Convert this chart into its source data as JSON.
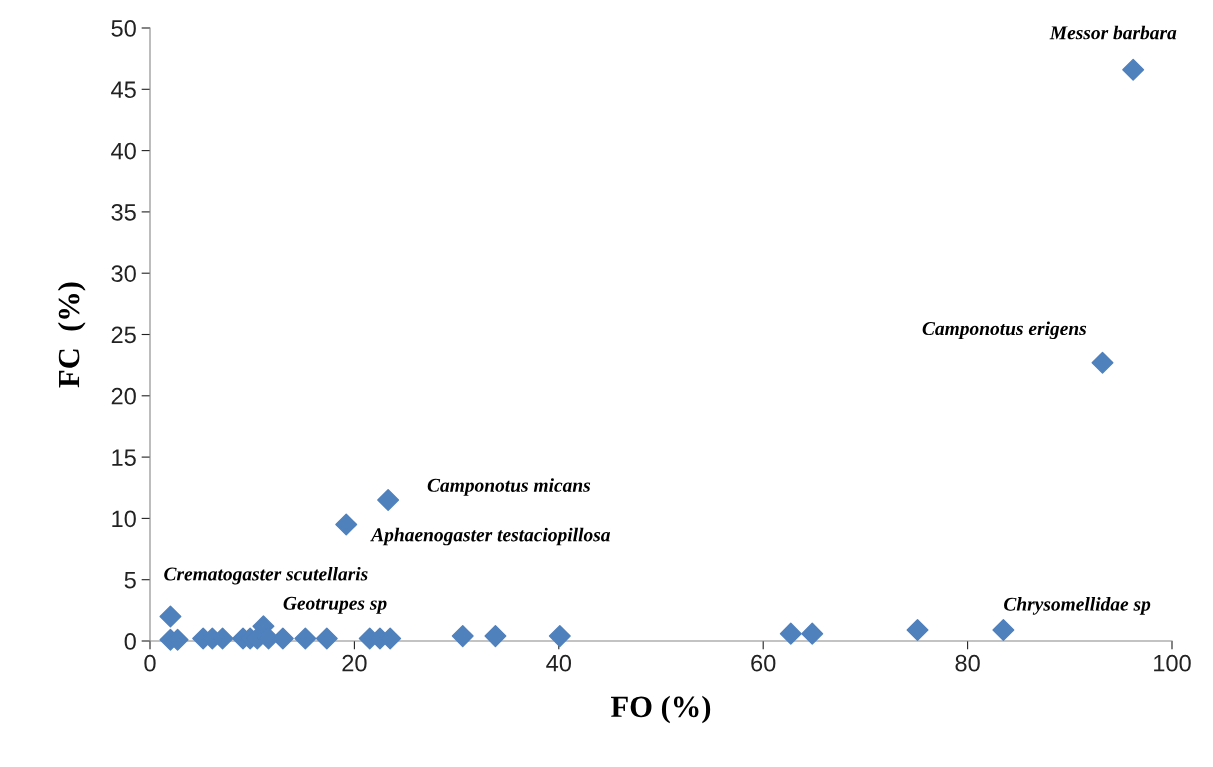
{
  "chart_data": {
    "type": "scatter",
    "xlabel": "FO (%)",
    "ylabel": "FC  (%)",
    "x": [
      96.2,
      93.2,
      23.3,
      19.2,
      2.0,
      83.5,
      11.1,
      2.0,
      2.7,
      5.2,
      6.1,
      7.1,
      9.1,
      9.8,
      10.5,
      11.6,
      13.0,
      15.2,
      17.3,
      21.5,
      22.5,
      23.5,
      30.6,
      33.8,
      40.1,
      62.7,
      64.8,
      75.1
    ],
    "series": [
      {
        "color": "#4f81bd",
        "values": [
          46.6,
          22.7,
          11.5,
          9.5,
          2.0,
          0.9,
          1.2,
          0.1,
          0.1,
          0.2,
          0.2,
          0.2,
          0.2,
          0.2,
          0.2,
          0.2,
          0.2,
          0.2,
          0.2,
          0.2,
          0.2,
          0.2,
          0.4,
          0.4,
          0.4,
          0.6,
          0.6,
          0.9
        ]
      }
    ],
    "marker": "diamond",
    "grid": false,
    "xlim": [
      0,
      100
    ],
    "xticks": [
      0,
      20,
      40,
      60,
      80,
      100
    ],
    "ylim": [
      0,
      50
    ],
    "yticks": [
      0,
      5,
      10,
      15,
      20,
      25,
      30,
      35,
      40,
      45,
      50
    ],
    "annotations": [
      {
        "text": "Messor barbara",
        "x": 96.2,
        "y": 46.6
      },
      {
        "text": "Camponotus erigens",
        "x": 93.2,
        "y": 22.7
      },
      {
        "text": "Camponotus micans",
        "x": 23.3,
        "y": 11.5
      },
      {
        "text": "Aphaenogaster testaciopillosa",
        "x": 19.2,
        "y": 9.5
      },
      {
        "text": "Crematogaster scutellaris",
        "x": 2.0,
        "y": 2.0
      },
      {
        "text": "Geotrupes sp",
        "x": 11.1,
        "y": 1.2
      },
      {
        "text": "Chrysomellidae sp",
        "x": 83.5,
        "y": 0.9
      }
    ]
  }
}
